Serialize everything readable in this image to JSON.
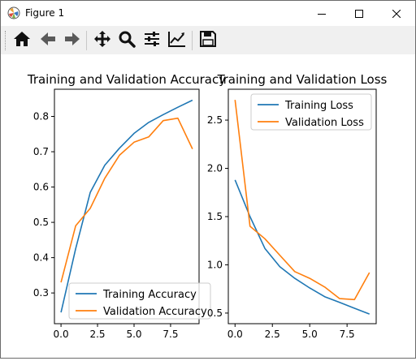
{
  "window": {
    "title": "Figure 1",
    "controls": {
      "minimize": "minimize",
      "maximize": "maximize",
      "close": "close"
    }
  },
  "toolbar": {
    "buttons": [
      {
        "name": "home",
        "icon": "home-icon"
      },
      {
        "name": "back",
        "icon": "arrow-left-icon"
      },
      {
        "name": "forward",
        "icon": "arrow-right-icon"
      },
      {
        "name": "pan",
        "icon": "move-icon"
      },
      {
        "name": "zoom",
        "icon": "magnifier-icon"
      },
      {
        "name": "subplots",
        "icon": "sliders-icon"
      },
      {
        "name": "edit-axes",
        "icon": "line-chart-icon"
      },
      {
        "name": "save",
        "icon": "floppy-icon"
      }
    ]
  },
  "colors": {
    "series1": "#1f77b4",
    "series2": "#ff7f0e"
  },
  "chart_data": [
    {
      "type": "line",
      "title": "Training and Validation Accuracy",
      "xlabel": "",
      "ylabel": "",
      "x": [
        0,
        1,
        2,
        3,
        4,
        5,
        6,
        7,
        8,
        9
      ],
      "xlim": [
        -0.45,
        9.45
      ],
      "ylim": [
        0.213,
        0.877
      ],
      "xticks": [
        "0.0",
        "2.5",
        "5.0",
        "7.5"
      ],
      "xtick_values": [
        0,
        2.5,
        5,
        7.5
      ],
      "yticks": [
        "0.3",
        "0.4",
        "0.5",
        "0.6",
        "0.7",
        "0.8"
      ],
      "ytick_values": [
        0.3,
        0.4,
        0.5,
        0.6,
        0.7,
        0.8
      ],
      "legend_position": "lower-right",
      "grid": false,
      "series": [
        {
          "name": "Training Accuracy",
          "values": [
            0.245,
            0.425,
            0.585,
            0.662,
            0.71,
            0.752,
            0.783,
            0.805,
            0.826,
            0.846
          ]
        },
        {
          "name": "Validation Accuracy",
          "values": [
            0.33,
            0.49,
            0.54,
            0.625,
            0.69,
            0.727,
            0.742,
            0.788,
            0.795,
            0.708
          ]
        }
      ]
    },
    {
      "type": "line",
      "title": "Training and Validation Loss",
      "xlabel": "",
      "ylabel": "",
      "x": [
        0,
        1,
        2,
        3,
        4,
        5,
        6,
        7,
        8,
        9
      ],
      "xlim": [
        -0.45,
        9.45
      ],
      "ylim": [
        0.39,
        2.82
      ],
      "xticks": [
        "0.0",
        "2.5",
        "5.0",
        "7.5"
      ],
      "xtick_values": [
        0,
        2.5,
        5,
        7.5
      ],
      "yticks": [
        "0.5",
        "1.0",
        "1.5",
        "2.0",
        "2.5"
      ],
      "ytick_values": [
        0.5,
        1.0,
        1.5,
        2.0,
        2.5
      ],
      "legend_position": "upper-right",
      "grid": false,
      "series": [
        {
          "name": "Training Loss",
          "values": [
            1.88,
            1.5,
            1.17,
            0.98,
            0.86,
            0.76,
            0.67,
            0.61,
            0.55,
            0.49
          ]
        },
        {
          "name": "Validation Loss",
          "values": [
            2.71,
            1.4,
            1.27,
            1.1,
            0.93,
            0.86,
            0.77,
            0.65,
            0.64,
            0.92
          ]
        }
      ]
    }
  ]
}
